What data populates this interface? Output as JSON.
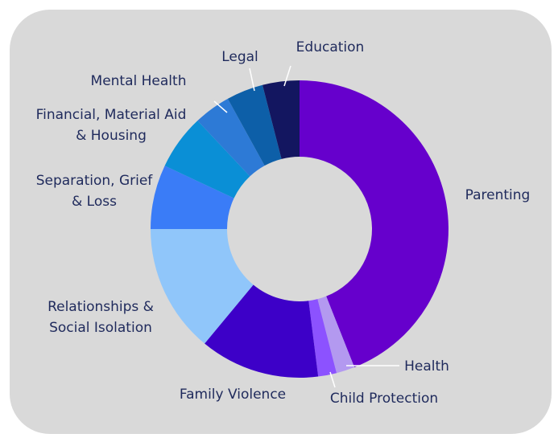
{
  "chart_data": {
    "type": "donut",
    "categories": [
      "Parenting",
      "Health",
      "Child Protection",
      "Family Violence",
      "Relationships & Social Isolation",
      "Separation, Grief & Loss",
      "Financial, Material Aid & Housing",
      "Mental Health",
      "Legal",
      "Education"
    ],
    "values": [
      44,
      2,
      2,
      13,
      14,
      7,
      6,
      4,
      4,
      4
    ],
    "colors": [
      "#6600cc",
      "#b399f0",
      "#8c52ff",
      "#3d00c8",
      "#90c6fa",
      "#3a7cf7",
      "#0a8fd6",
      "#2d7ad6",
      "#0d5fa8",
      "#131660"
    ]
  }
}
